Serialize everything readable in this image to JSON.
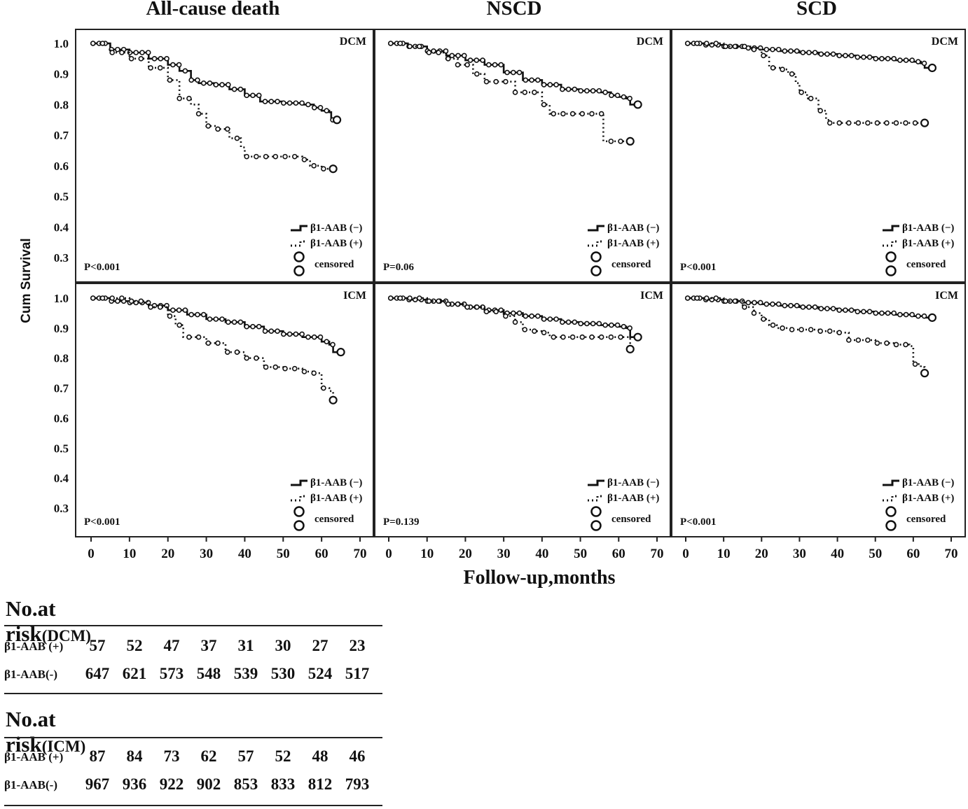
{
  "column_titles": [
    "All-cause death",
    "NSCD",
    "SCD"
  ],
  "y_axis_label": "Cum Survival",
  "x_axis_label": "Follow-up,months",
  "legend": {
    "neg": "β1-AAB (−)",
    "pos": "β1-AAB (+)",
    "censored": "censored"
  },
  "colors": {
    "line": "#111111",
    "frame": "#222222",
    "background": "#ffffff"
  },
  "chart_data": [
    {
      "type": "line",
      "panel": "All-cause death / DCM",
      "label": "DCM",
      "pvalue": "P<0.001",
      "xlim": [
        0,
        70
      ],
      "ylim": [
        0.3,
        1.0
      ],
      "series": [
        {
          "name": "β1-AAB (−)",
          "style": "solid",
          "x": [
            0,
            5,
            10,
            15,
            20,
            23,
            26,
            28,
            32,
            36,
            40,
            44,
            50,
            55,
            58,
            60,
            62,
            62.5,
            64
          ],
          "y": [
            1.0,
            0.98,
            0.97,
            0.95,
            0.93,
            0.91,
            0.88,
            0.87,
            0.865,
            0.85,
            0.83,
            0.81,
            0.805,
            0.8,
            0.79,
            0.78,
            0.775,
            0.75,
            0.75
          ]
        },
        {
          "name": "β1-AAB (+)",
          "style": "dotted",
          "x": [
            0,
            5,
            10,
            15,
            20,
            23,
            26,
            28,
            30,
            33,
            36,
            39,
            40,
            45,
            55,
            57,
            60,
            63
          ],
          "y": [
            1.0,
            0.97,
            0.95,
            0.92,
            0.88,
            0.82,
            0.8,
            0.77,
            0.73,
            0.72,
            0.69,
            0.66,
            0.63,
            0.63,
            0.62,
            0.6,
            0.59,
            0.59
          ]
        }
      ]
    },
    {
      "type": "line",
      "panel": "NSCD / DCM",
      "label": "DCM",
      "pvalue": "P=0.06",
      "xlim": [
        0,
        70
      ],
      "ylim": [
        0.3,
        1.0
      ],
      "series": [
        {
          "name": "β1-AAB (−)",
          "style": "solid",
          "x": [
            0,
            5,
            10,
            15,
            20,
            25,
            30,
            35,
            40,
            45,
            50,
            55,
            58,
            60,
            62,
            63,
            65
          ],
          "y": [
            1.0,
            0.99,
            0.975,
            0.96,
            0.945,
            0.93,
            0.905,
            0.88,
            0.865,
            0.85,
            0.845,
            0.84,
            0.83,
            0.825,
            0.82,
            0.8,
            0.8
          ]
        },
        {
          "name": "β1-AAB (+)",
          "style": "dotted",
          "x": [
            0,
            5,
            10,
            15,
            18,
            22,
            25,
            30,
            33,
            36,
            40,
            42,
            45,
            50,
            54,
            56,
            58,
            63
          ],
          "y": [
            1.0,
            0.99,
            0.97,
            0.95,
            0.93,
            0.9,
            0.875,
            0.875,
            0.84,
            0.84,
            0.8,
            0.77,
            0.77,
            0.77,
            0.77,
            0.68,
            0.68,
            0.68
          ]
        }
      ]
    },
    {
      "type": "line",
      "panel": "SCD / DCM",
      "label": "DCM",
      "pvalue": "P<0.001",
      "xlim": [
        0,
        70
      ],
      "ylim": [
        0.3,
        1.0
      ],
      "series": [
        {
          "name": "β1-AAB (−)",
          "style": "solid",
          "x": [
            0,
            5,
            10,
            15,
            20,
            25,
            30,
            35,
            40,
            45,
            50,
            55,
            60,
            62,
            63,
            65
          ],
          "y": [
            1.0,
            0.995,
            0.99,
            0.985,
            0.98,
            0.975,
            0.97,
            0.965,
            0.96,
            0.955,
            0.95,
            0.945,
            0.94,
            0.935,
            0.92,
            0.92
          ]
        },
        {
          "name": "β1-AAB (+)",
          "style": "dotted",
          "x": [
            0,
            10,
            17,
            20,
            22,
            25,
            27,
            29,
            30,
            32,
            35,
            37,
            38,
            45,
            55,
            63
          ],
          "y": [
            1.0,
            0.99,
            0.98,
            0.96,
            0.92,
            0.915,
            0.9,
            0.87,
            0.84,
            0.82,
            0.78,
            0.75,
            0.74,
            0.74,
            0.74,
            0.74
          ]
        }
      ]
    },
    {
      "type": "line",
      "panel": "All-cause death / ICM",
      "label": "ICM",
      "pvalue": "P<0.001",
      "xlim": [
        0,
        70
      ],
      "ylim": [
        0.3,
        1.0
      ],
      "series": [
        {
          "name": "β1-AAB (−)",
          "style": "solid",
          "x": [
            0,
            5,
            10,
            15,
            20,
            25,
            30,
            35,
            40,
            45,
            50,
            55,
            60,
            62,
            63,
            65
          ],
          "y": [
            1.0,
            0.99,
            0.985,
            0.975,
            0.96,
            0.945,
            0.93,
            0.92,
            0.905,
            0.89,
            0.88,
            0.87,
            0.855,
            0.845,
            0.82,
            0.82
          ]
        },
        {
          "name": "β1-AAB (+)",
          "style": "dotted",
          "x": [
            0,
            10,
            15,
            20,
            22,
            24,
            27,
            30,
            35,
            40,
            45,
            50,
            55,
            58,
            60,
            62,
            63
          ],
          "y": [
            1.0,
            0.99,
            0.97,
            0.94,
            0.91,
            0.87,
            0.87,
            0.85,
            0.82,
            0.8,
            0.77,
            0.765,
            0.755,
            0.75,
            0.7,
            0.69,
            0.66
          ]
        }
      ]
    },
    {
      "type": "line",
      "panel": "NSCD / ICM",
      "label": "ICM",
      "pvalue": "P=0.139",
      "xlim": [
        0,
        70
      ],
      "ylim": [
        0.3,
        1.0
      ],
      "series": [
        {
          "name": "β1-AAB (−)",
          "style": "solid",
          "x": [
            0,
            5,
            10,
            15,
            20,
            25,
            30,
            35,
            40,
            45,
            50,
            55,
            60,
            62,
            63,
            65
          ],
          "y": [
            1.0,
            0.995,
            0.99,
            0.98,
            0.97,
            0.96,
            0.95,
            0.94,
            0.93,
            0.92,
            0.915,
            0.91,
            0.905,
            0.9,
            0.87,
            0.87
          ]
        },
        {
          "name": "β1-AAB (+)",
          "style": "dotted",
          "x": [
            0,
            10,
            15,
            20,
            25,
            30,
            33,
            35,
            38,
            40,
            42,
            45,
            50,
            55,
            60,
            62,
            63
          ],
          "y": [
            1.0,
            0.99,
            0.98,
            0.97,
            0.955,
            0.94,
            0.92,
            0.895,
            0.89,
            0.885,
            0.87,
            0.87,
            0.87,
            0.87,
            0.87,
            0.87,
            0.83
          ]
        }
      ]
    },
    {
      "type": "line",
      "panel": "SCD / ICM",
      "label": "ICM",
      "pvalue": "P<0.001",
      "xlim": [
        0,
        70
      ],
      "ylim": [
        0.3,
        1.0
      ],
      "series": [
        {
          "name": "β1-AAB (−)",
          "style": "solid",
          "x": [
            0,
            5,
            10,
            15,
            20,
            25,
            30,
            35,
            40,
            45,
            50,
            55,
            60,
            63,
            65
          ],
          "y": [
            1.0,
            0.995,
            0.99,
            0.985,
            0.98,
            0.975,
            0.97,
            0.965,
            0.96,
            0.955,
            0.95,
            0.945,
            0.94,
            0.935,
            0.935
          ]
        },
        {
          "name": "β1-AAB (+)",
          "style": "dotted",
          "x": [
            0,
            10,
            15,
            18,
            20,
            22,
            24,
            28,
            35,
            40,
            43,
            48,
            50,
            55,
            59,
            60,
            62,
            63
          ],
          "y": [
            1.0,
            0.99,
            0.97,
            0.95,
            0.93,
            0.91,
            0.9,
            0.895,
            0.89,
            0.885,
            0.86,
            0.86,
            0.85,
            0.845,
            0.84,
            0.78,
            0.77,
            0.75
          ]
        }
      ]
    }
  ],
  "risk_tables": [
    {
      "title": "No.at risk",
      "subtitle": "(DCM)",
      "rows": [
        {
          "label": "β1-AAB (+)",
          "values": [
            "57",
            "52",
            "47",
            "37",
            "31",
            "30",
            "27",
            "23"
          ]
        },
        {
          "label": "β1-AAB(-)",
          "values": [
            "647",
            "621",
            "573",
            "548",
            "539",
            "530",
            "524",
            "517"
          ]
        }
      ]
    },
    {
      "title": "No.at risk",
      "subtitle": "(ICM)",
      "rows": [
        {
          "label": "β1-AAB (+)",
          "values": [
            "87",
            "84",
            "73",
            "62",
            "57",
            "52",
            "48",
            "46"
          ]
        },
        {
          "label": "β1-AAB(-)",
          "values": [
            "967",
            "936",
            "922",
            "902",
            "853",
            "833",
            "812",
            "793"
          ]
        }
      ]
    }
  ]
}
